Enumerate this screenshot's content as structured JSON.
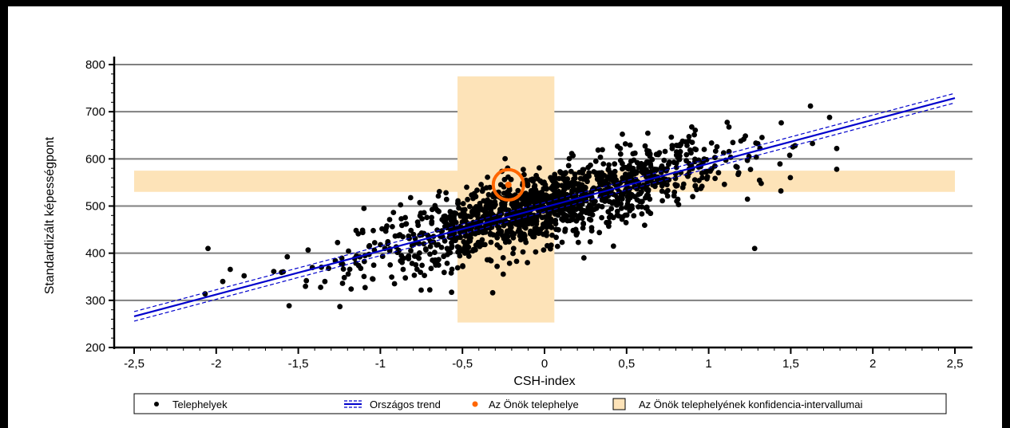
{
  "chart_data": {
    "type": "scatter",
    "xlabel": "CSH-index",
    "ylabel": "Standardizált képességpont",
    "xlim": [
      -2.5,
      2.5
    ],
    "ylim": [
      200,
      800
    ],
    "xticks": [
      -2.5,
      -2,
      -1.5,
      -1,
      -0.5,
      0,
      0.5,
      1,
      1.5,
      2,
      2.5
    ],
    "xtick_labels": [
      "-2,5",
      "-2",
      "-1,5",
      "-1",
      "-0,5",
      "0",
      "0,5",
      "1",
      "1,5",
      "2",
      "2,5"
    ],
    "yticks": [
      200,
      300,
      400,
      500,
      600,
      700,
      800
    ],
    "ytick_labels": [
      "200",
      "300",
      "400",
      "500",
      "600",
      "700",
      "800"
    ],
    "grid": "horizontal",
    "series": [
      {
        "name": "Telephelyek",
        "kind": "scatter",
        "color": "#000000",
        "cluster_trend": {
          "slope": 92,
          "intercept": 498,
          "spread": 38,
          "x_range": [
            -2.1,
            1.8
          ],
          "approx_count": 1400
        },
        "notable_points": [
          {
            "x": -2.05,
            "y": 410
          },
          {
            "x": -1.96,
            "y": 340
          },
          {
            "x": -1.83,
            "y": 352
          },
          {
            "x": 1.62,
            "y": 712
          },
          {
            "x": 1.78,
            "y": 622
          },
          {
            "x": 1.78,
            "y": 578
          },
          {
            "x": 1.28,
            "y": 410
          },
          {
            "x": 1.44,
            "y": 532
          },
          {
            "x": 1.32,
            "y": 548
          },
          {
            "x": -1.1,
            "y": 495
          },
          {
            "x": 0.42,
            "y": 415
          },
          {
            "x": 0.24,
            "y": 390
          }
        ]
      },
      {
        "name": "Országos trend",
        "kind": "line",
        "color": "#0000cc",
        "x": [
          -2.5,
          2.5
        ],
        "y": [
          266,
          729
        ],
        "ci_band": 6
      },
      {
        "name": "Az Önök telephelye",
        "kind": "highlight-point",
        "color": "#ff6600",
        "x": -0.22,
        "y": 545
      },
      {
        "name": "Az Önök telephelyének konfidencia-intervallumai",
        "kind": "ci-cross",
        "color": "#fde3b8",
        "x_interval": [
          -0.53,
          0.06
        ],
        "y_interval": [
          530,
          575
        ],
        "x_span": [
          -2.5,
          2.5
        ],
        "y_span": [
          253,
          775
        ]
      }
    ],
    "legend": {
      "position": "bottom",
      "items": [
        "Telephelyek",
        "Országos trend",
        "Az Önök telephelye",
        "Az Önök telephelyének konfidencia-intervallumai"
      ]
    }
  }
}
